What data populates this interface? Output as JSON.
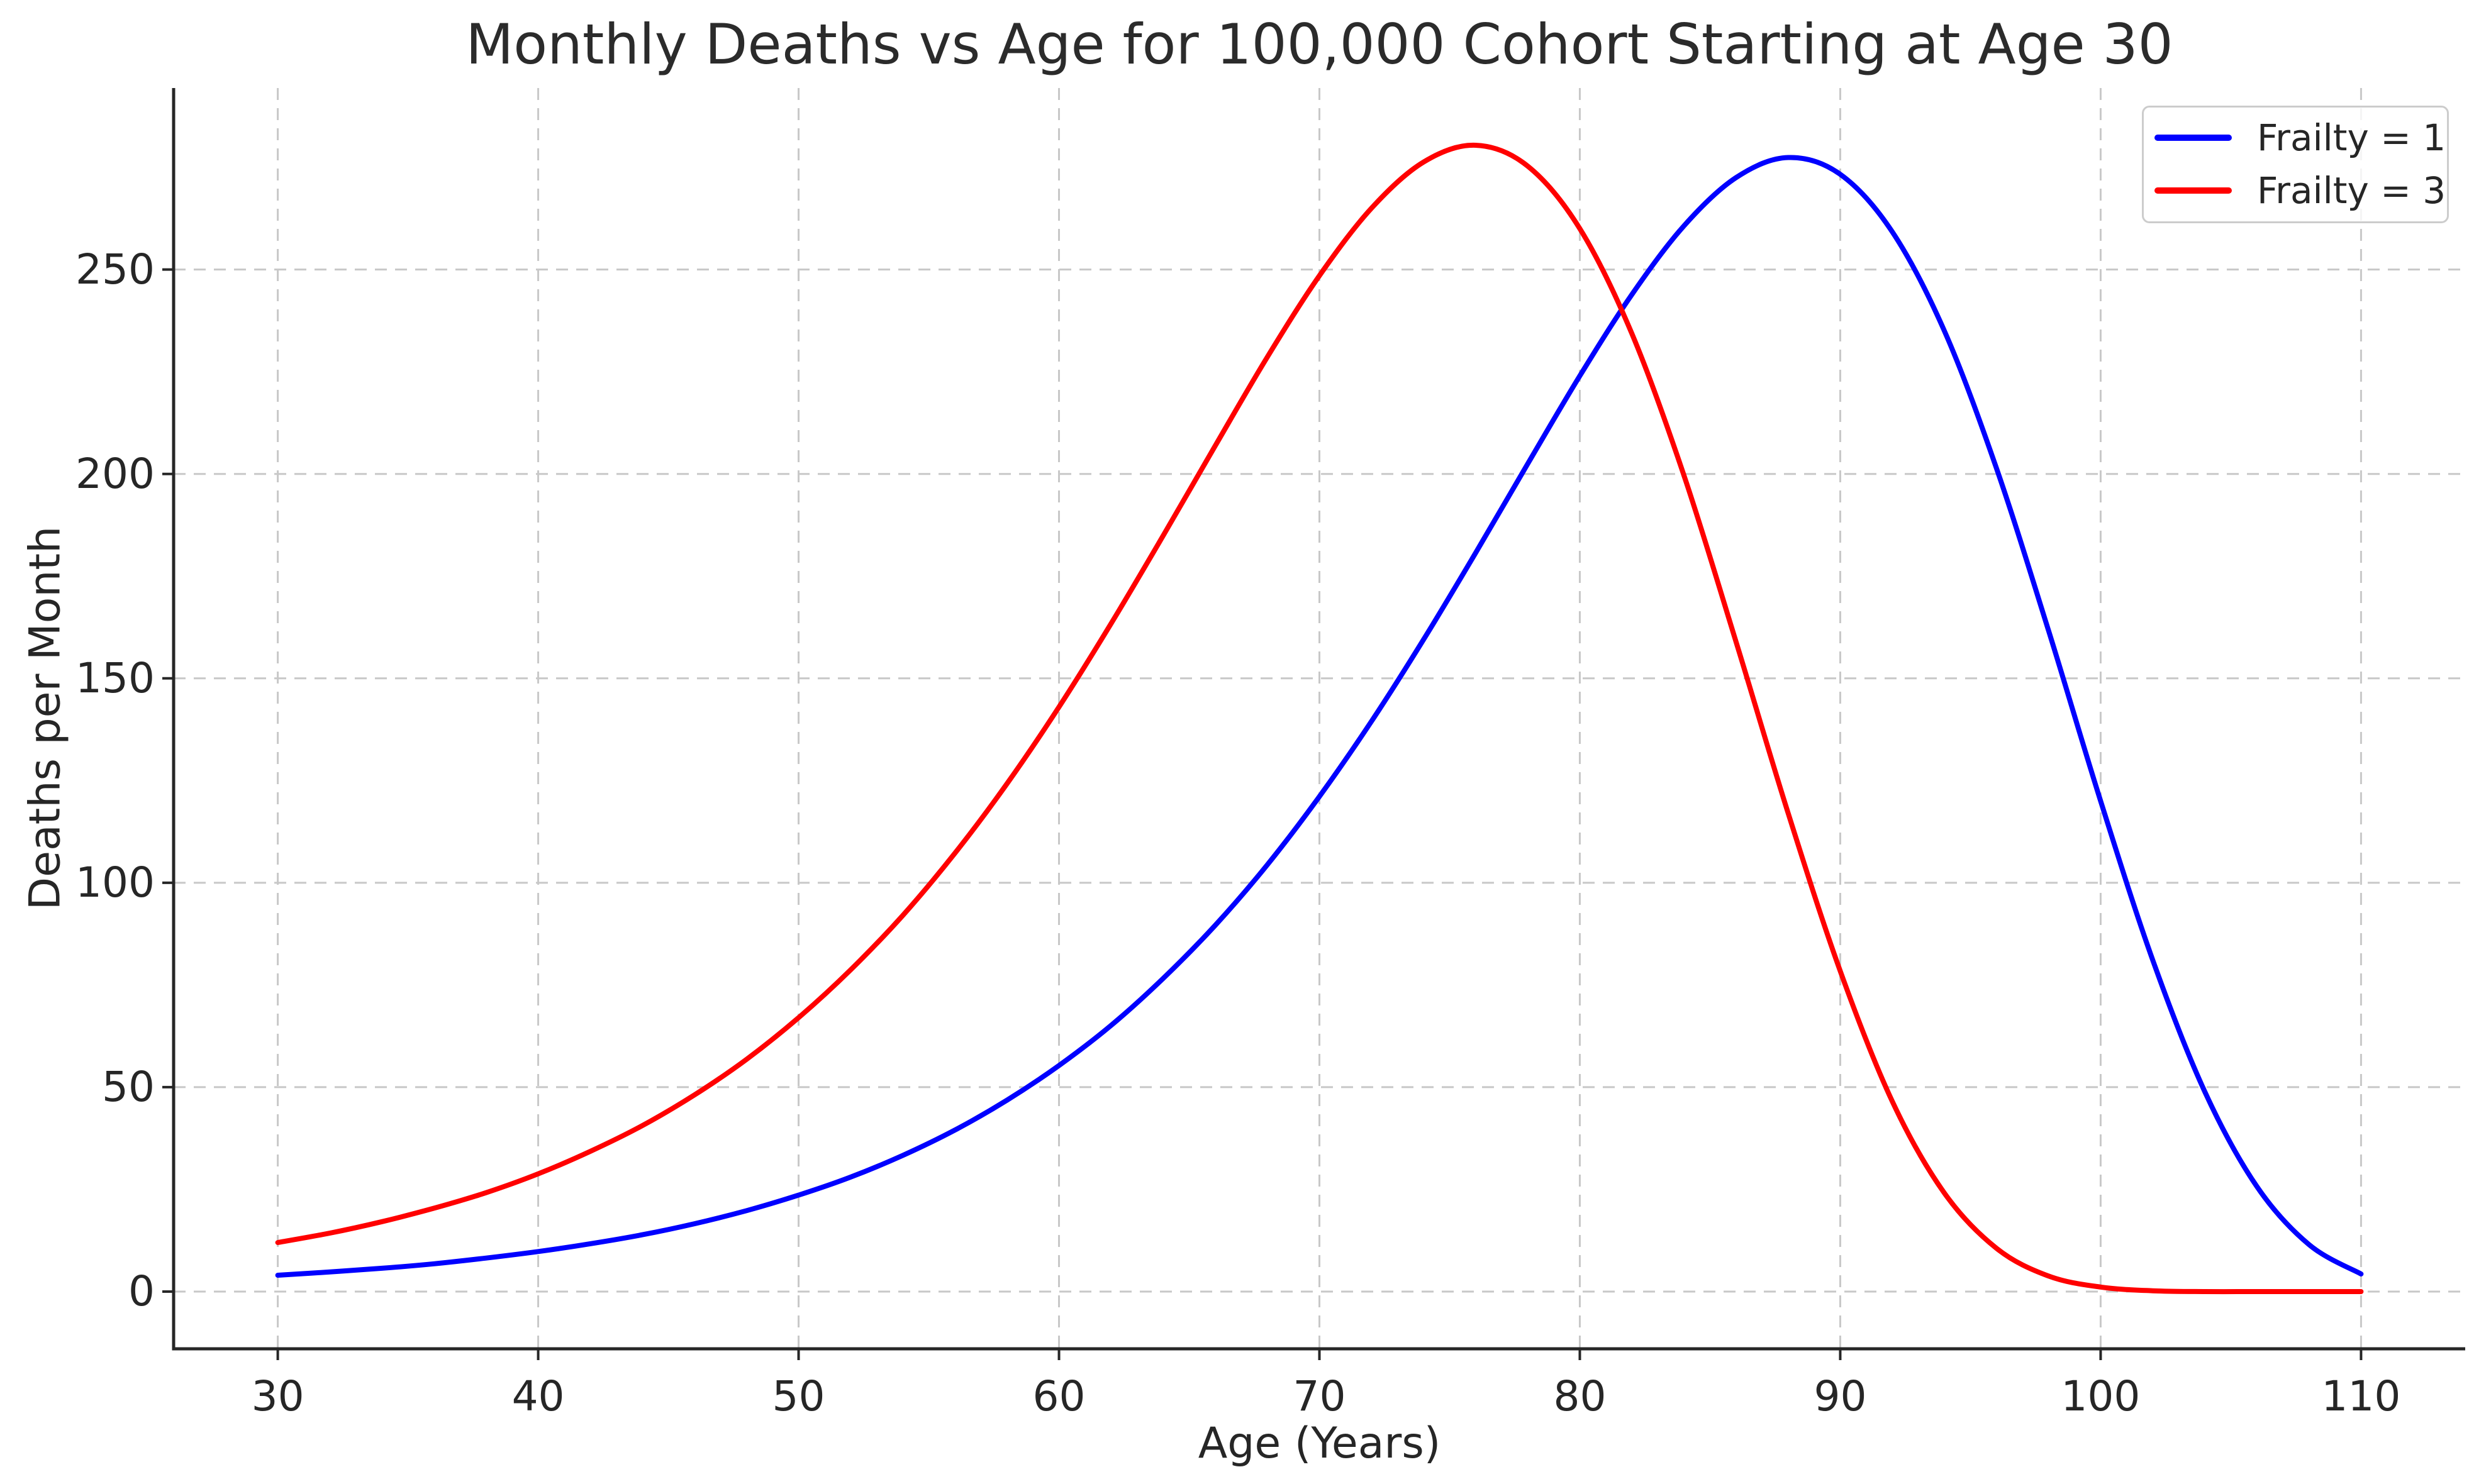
{
  "title": "Monthly Deaths vs Age for 100,000 Cohort Starting at Age 30",
  "chart_data": {
    "type": "line",
    "title": "Monthly Deaths vs Age for 100,000 Cohort Starting at Age 30",
    "xlabel": "Age (Years)",
    "ylabel": "Deaths per Month",
    "xlim": [
      26,
      114
    ],
    "ylim": [
      -14,
      294.4
    ],
    "xticks": [
      30,
      40,
      50,
      60,
      70,
      80,
      90,
      100,
      110
    ],
    "yticks": [
      0,
      50,
      100,
      150,
      200,
      250
    ],
    "grid": true,
    "grid_style": "dashed",
    "legend_position": "upper right",
    "x": [
      30,
      32,
      34,
      36,
      38,
      40,
      42,
      44,
      46,
      48,
      50,
      52,
      54,
      56,
      58,
      60,
      62,
      64,
      66,
      68,
      70,
      72,
      74,
      76,
      78,
      80,
      82,
      84,
      86,
      88,
      90,
      92,
      94,
      96,
      98,
      100,
      102,
      104,
      106,
      108,
      110
    ],
    "series": [
      {
        "name": "Frailty = 1",
        "color": "#0000ff",
        "values": [
          4.0,
          4.8,
          5.7,
          6.8,
          8.2,
          9.8,
          11.7,
          13.9,
          16.6,
          19.8,
          23.6,
          28.0,
          33.3,
          39.5,
          46.8,
          55.3,
          65.1,
          76.6,
          89.6,
          104.4,
          121.1,
          139.5,
          159.5,
          180.7,
          202.5,
          224.0,
          243.9,
          260.7,
          272.5,
          277.4,
          273.3,
          259.2,
          235.0,
          201.4,
          161.7,
          120.0,
          81.1,
          48.9,
          25.7,
          11.5,
          4.3
        ]
      },
      {
        "name": "Frailty = 3",
        "color": "#ff0000",
        "values": [
          12.0,
          14.3,
          17.1,
          20.4,
          24.2,
          28.8,
          34.3,
          40.6,
          48.1,
          56.8,
          67.0,
          78.7,
          92.0,
          107.2,
          124.2,
          143.0,
          163.4,
          184.9,
          206.9,
          228.6,
          248.5,
          265.0,
          276.3,
          280.4,
          275.3,
          260.0,
          234.3,
          199.6,
          158.9,
          117.0,
          78.4,
          46.5,
          24.1,
          10.6,
          3.8,
          1.1,
          0.2,
          0.0,
          0.0,
          0.0,
          0.0
        ]
      }
    ]
  },
  "colors": {
    "text": "#262626",
    "spine": "#262626",
    "grid": "#c8c8c8",
    "background": "#ffffff",
    "legend_border": "#cccccc"
  }
}
